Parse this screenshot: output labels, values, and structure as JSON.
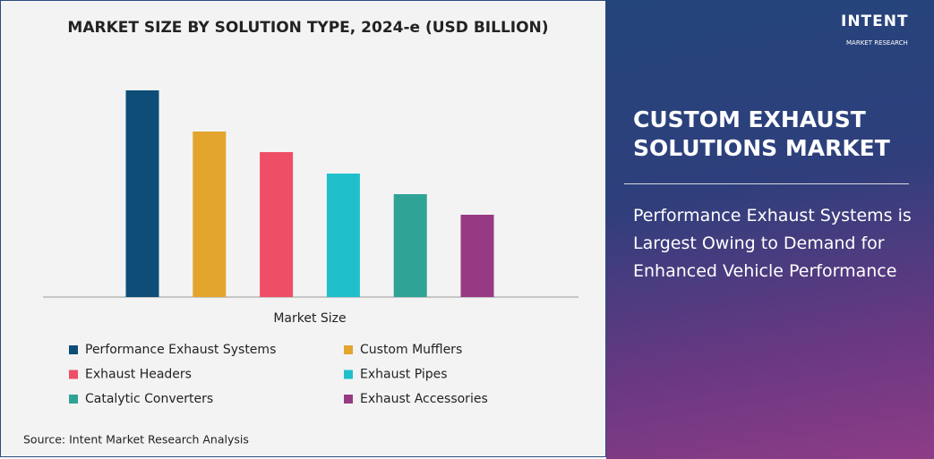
{
  "chart_data": {
    "type": "bar",
    "title": "MARKET SIZE BY SOLUTION TYPE, 2024-e (USD BILLION)",
    "x_label": "Market Size",
    "categories": [
      "Performance Exhaust Systems",
      "Custom Mufflers",
      "Exhaust Headers",
      "Exhaust Pipes",
      "Catalytic Converters",
      "Exhaust Accessories"
    ],
    "values": [
      231,
      185,
      162,
      138,
      115,
      92
    ],
    "colors": [
      "#0d4d78",
      "#e3a52d",
      "#ee4f66",
      "#1fc0cc",
      "#2fa395",
      "#973a83"
    ],
    "ylim": [
      0,
      250
    ],
    "source": "Source: Intent Market Research Analysis"
  },
  "panel": {
    "logo": "INTENT",
    "logo_sub": "MARKET RESEARCH",
    "title": "CUSTOM EXHAUST SOLUTIONS MARKET",
    "subtitle": "Performance Exhaust Systems is Largest Owing to Demand for Enhanced Vehicle Performance"
  }
}
